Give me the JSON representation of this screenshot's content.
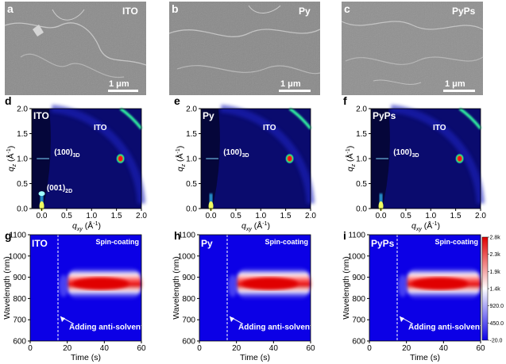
{
  "panels": [
    {
      "letter": "a",
      "sample": "ITO",
      "scale": "1 μm"
    },
    {
      "letter": "b",
      "sample": "Py",
      "scale": "1 μm"
    },
    {
      "letter": "c",
      "sample": "PyPs",
      "scale": "1 μm"
    },
    {
      "letter": "d",
      "sample": "ITO",
      "arc": "ITO",
      "peak3d": "(100)",
      "peak3d_sub": "3D",
      "peak2d": "(001)",
      "peak2d_sub": "2D"
    },
    {
      "letter": "e",
      "sample": "Py",
      "arc": "ITO",
      "peak3d": "(100)",
      "peak3d_sub": "3D"
    },
    {
      "letter": "f",
      "sample": "PyPs",
      "arc": "ITO",
      "peak3d": "(100)",
      "peak3d_sub": "3D"
    },
    {
      "letter": "g",
      "sample": "ITO",
      "process": "Spin-coating",
      "event": "Adding anti-solvent"
    },
    {
      "letter": "h",
      "sample": "Py",
      "process": "Spin-coating",
      "event": "Adding anti-solvent"
    },
    {
      "letter": "i",
      "sample": "PyPs",
      "process": "Spin-coating",
      "event": "Adding anti-solvent"
    }
  ],
  "giwaxs_axes": {
    "xlabel": "q",
    "xlabel_sub": "xy",
    "xunit": "(Å",
    "xunit_sup": "-1",
    "xunit_end": ")",
    "ylabel": "q",
    "ylabel_sub": "z",
    "yunit": "(Å",
    "yunit_sup": "-1",
    "yunit_end": ")",
    "xticks": [
      "0.0",
      "0.5",
      "1.0",
      "1.5",
      "2.0"
    ],
    "yticks": [
      "0.0",
      "0.5",
      "1.0",
      "1.5",
      "2.0"
    ]
  },
  "pl_axes": {
    "xlabel": "Time (s)",
    "ylabel": "Wavelength (nm)",
    "xticks": [
      "0",
      "20",
      "40",
      "60"
    ],
    "yticks": [
      "600",
      "700",
      "800",
      "900",
      "1000",
      "1100"
    ]
  },
  "chart_data": [
    {
      "type": "heatmap",
      "panels": [
        "g",
        "h",
        "i"
      ],
      "xlabel": "Time (s)",
      "ylabel": "Wavelength (nm)",
      "xlim": [
        0,
        60
      ],
      "ylim": [
        600,
        1100
      ],
      "antisolvent_time_s": 15,
      "emission_center_nm": 870,
      "colorbar": {
        "ticks": [
          "2.8k",
          "2.3k",
          "1.9k",
          "1.4k",
          "920.0",
          "450.0",
          "-20.0"
        ],
        "min": -20,
        "max": 2800
      }
    },
    {
      "type": "scatter",
      "panels": [
        "d",
        "e",
        "f"
      ],
      "xlabel": "qxy (Å-1)",
      "ylabel": "qz (Å-1)",
      "xlim": [
        -0.2,
        2.0
      ],
      "ylim": [
        0,
        2.0
      ],
      "peaks": [
        {
          "label": "(100)3D",
          "qxy": 1.58,
          "qz": 1.0
        },
        {
          "label": "(001)2D",
          "qxy": 0.0,
          "qz": 0.3
        }
      ]
    }
  ],
  "colors": {
    "map_blue": "#0c00e6",
    "map_red": "#e00000",
    "sem_gray": "#8e8e8e"
  }
}
